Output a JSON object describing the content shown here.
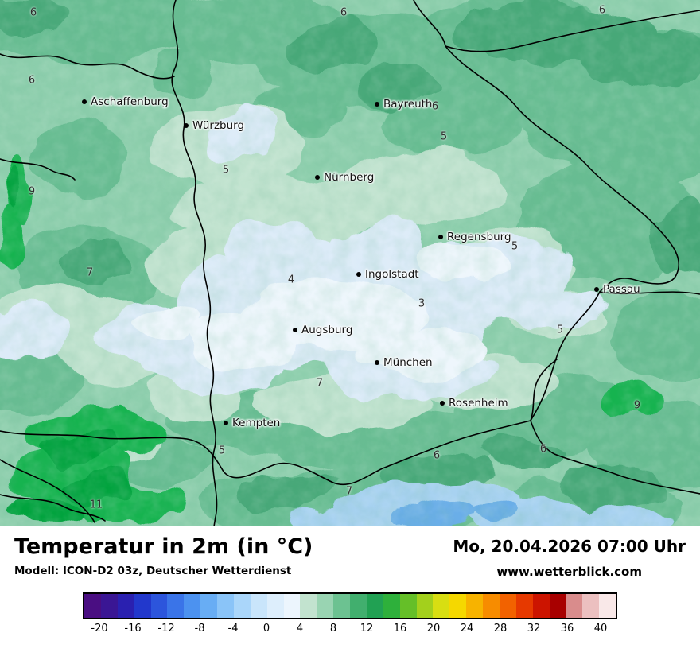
{
  "map": {
    "cities": [
      {
        "name": "Aschaffenburg"
      },
      {
        "name": "Würzburg"
      },
      {
        "name": "Bayreuth"
      },
      {
        "name": "Nürnberg"
      },
      {
        "name": "Regensburg"
      },
      {
        "name": "Ingolstadt"
      },
      {
        "name": "Passau"
      },
      {
        "name": "Augsburg"
      },
      {
        "name": "München"
      },
      {
        "name": "Rosenheim"
      },
      {
        "name": "Kempten"
      }
    ],
    "temps": [
      {
        "value": "6"
      },
      {
        "value": "6"
      },
      {
        "value": "6"
      },
      {
        "value": "6"
      },
      {
        "value": "9"
      },
      {
        "value": "7"
      },
      {
        "value": "5"
      },
      {
        "value": "6"
      },
      {
        "value": "5"
      },
      {
        "value": "4"
      },
      {
        "value": "3"
      },
      {
        "value": "5"
      },
      {
        "value": "5"
      },
      {
        "value": "7"
      },
      {
        "value": "5"
      },
      {
        "value": "6"
      },
      {
        "value": "6"
      },
      {
        "value": "9"
      },
      {
        "value": "11"
      },
      {
        "value": "7"
      }
    ]
  },
  "panel": {
    "title": "Temperatur in 2m (in °C)",
    "datetime": "Mo, 20.04.2026 07:00 Uhr",
    "model": "Modell: ICON-D2 03z, Deutscher Wetterdienst",
    "website": "www.wetterblick.com"
  },
  "legend": {
    "min": -22,
    "max": 42,
    "unit": "°C",
    "ticks": [
      -20,
      -16,
      -12,
      -8,
      -4,
      0,
      4,
      8,
      12,
      16,
      20,
      24,
      28,
      32,
      36,
      40
    ],
    "colors": [
      "#4a0e82",
      "#3a1694",
      "#2a20b0",
      "#2238cc",
      "#2c55dc",
      "#3a74e8",
      "#4c92f0",
      "#68adf4",
      "#8ac4f8",
      "#aad6fa",
      "#c9e5fb",
      "#ddeefc",
      "#ecf5fd",
      "#c2e3cf",
      "#99d4b2",
      "#6cc291",
      "#41af6e",
      "#21a153",
      "#2eb03b",
      "#65bf28",
      "#a3d01c",
      "#d8de12",
      "#f5d800",
      "#f7b300",
      "#f78c00",
      "#f26200",
      "#e63900",
      "#cc1400",
      "#a80000",
      "#d98c8c",
      "#ecc0c0",
      "#f9e8e8"
    ]
  }
}
